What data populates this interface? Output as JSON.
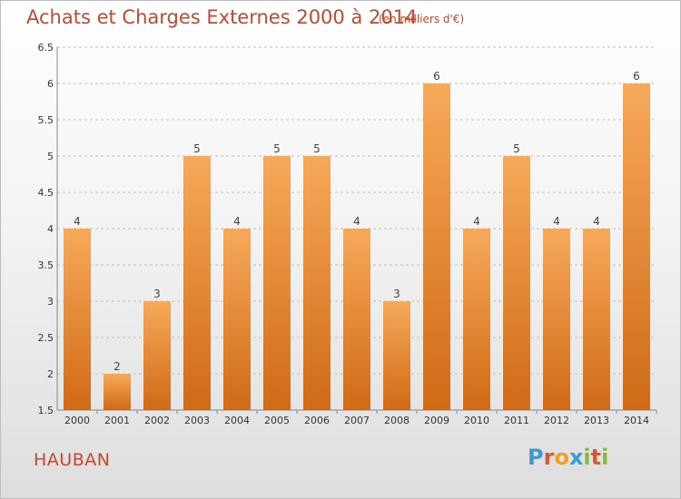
{
  "title": "Achats et Charges Externes 2000 à 2014",
  "unit_note": "(en milliers d'€)",
  "place": "HAUBAN",
  "brand": {
    "letters": [
      "P",
      "r",
      "o",
      "x",
      "i",
      "t",
      "i"
    ],
    "colors": [
      "#3a9ad9",
      "#e0542c",
      "#f0a21a",
      "#3a9ad9",
      "#8ab83a",
      "#e0542c",
      "#8ab83a"
    ]
  },
  "colors": {
    "accent": "#c2492b",
    "bar_top": "#f7a95a",
    "bar_bottom": "#d06a16",
    "grid": "#bdbdbd",
    "axis_text": "#333333"
  },
  "chart_data": {
    "type": "bar",
    "categories": [
      "2000",
      "2001",
      "2002",
      "2003",
      "2004",
      "2005",
      "2006",
      "2007",
      "2008",
      "2009",
      "2010",
      "2011",
      "2012",
      "2013",
      "2014"
    ],
    "values": [
      4,
      2,
      3,
      5,
      4,
      5,
      5,
      4,
      3,
      6,
      4,
      5,
      4,
      4,
      6
    ],
    "title": "Achats et Charges Externes 2000 à 2014",
    "xlabel": "",
    "ylabel": "",
    "ylim": [
      1.5,
      6.5
    ],
    "yticks": [
      "1.5",
      "2",
      "2.5",
      "3",
      "3.5",
      "4",
      "4.5",
      "5",
      "5.5",
      "6",
      "6.5"
    ],
    "grid": true,
    "data_labels": true
  }
}
